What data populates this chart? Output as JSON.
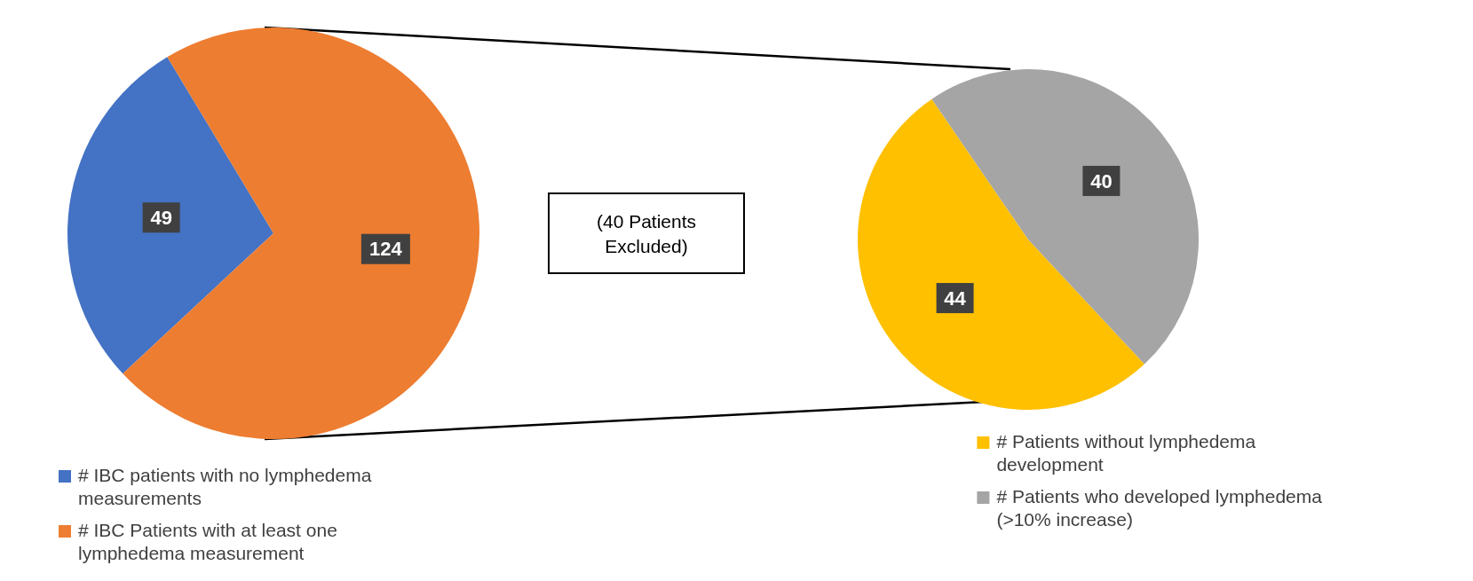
{
  "chart_data": [
    {
      "type": "pie",
      "categories": [
        "# IBC patients with no lymphedema measurements",
        "# IBC Patients with at least one lymphedema measurement"
      ],
      "values": [
        49,
        124
      ],
      "colors": [
        "#4472c4",
        "#ed7d31"
      ],
      "data_labels": true,
      "legend": "bottom left"
    },
    {
      "type": "pie",
      "categories": [
        "# Patients without lymphedema development",
        "# Patients who developed lymphedema (>10% increase)"
      ],
      "values": [
        44,
        40
      ],
      "colors": [
        "#ffc000",
        "#a5a5a5"
      ],
      "data_labels": true,
      "legend": "bottom right",
      "annotations": [
        "(40 Patients Excluded)"
      ]
    }
  ]
}
